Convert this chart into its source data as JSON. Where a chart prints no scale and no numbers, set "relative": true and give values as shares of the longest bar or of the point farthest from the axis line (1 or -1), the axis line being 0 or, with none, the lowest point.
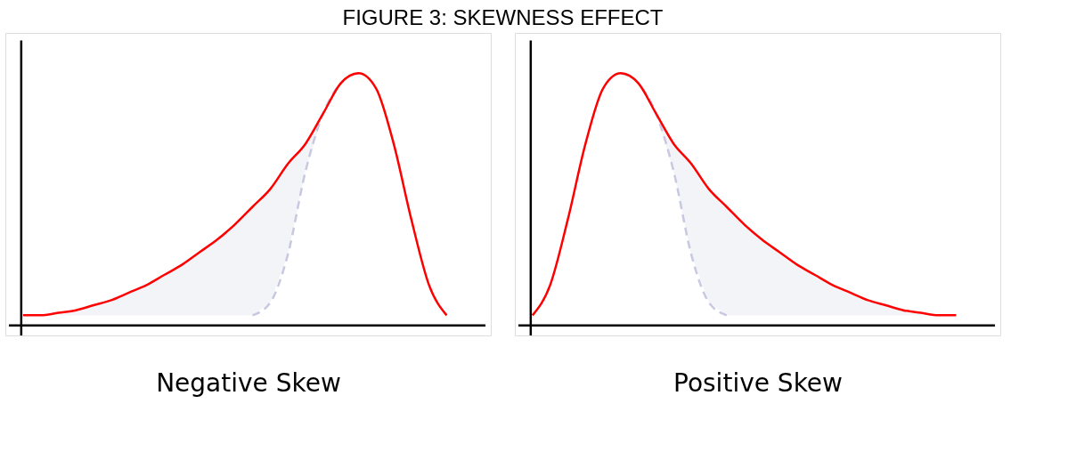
{
  "chart_data": [
    {
      "type": "line",
      "relative": true,
      "title": "FIGURE 3: SKEWNESS EFFECT",
      "xlabel": "Negative Skew",
      "grid": false,
      "categories": [
        null,
        null,
        null,
        null,
        null,
        null,
        null,
        null,
        null,
        null,
        null,
        null,
        null,
        null,
        null,
        null,
        null,
        null,
        null,
        null,
        null,
        null,
        null,
        null,
        null
      ],
      "series": [
        {
          "color": "#ff0000",
          "line_style": "solid",
          "values": [
            0.04,
            0.04,
            0.05,
            0.06,
            0.08,
            0.1,
            0.13,
            0.16,
            0.2,
            0.24,
            0.29,
            0.34,
            0.4,
            0.47,
            0.54,
            0.64,
            0.72,
            0.84,
            0.96,
            1.0,
            0.94,
            0.72,
            0.42,
            0.16,
            0.04
          ],
          "lower": [
            0.04,
            0.04,
            0.04,
            0.04,
            0.04,
            0.04,
            0.04,
            0.04,
            0.04,
            0.04,
            0.04,
            0.04,
            0.04,
            0.04,
            0.09,
            0.28,
            0.61,
            0.84,
            0.96,
            1.0,
            0.94,
            0.72,
            0.42,
            0.16,
            0.04
          ],
          "upper": [
            0.04,
            0.04,
            0.05,
            0.06,
            0.08,
            0.1,
            0.13,
            0.16,
            0.2,
            0.24,
            0.29,
            0.34,
            0.4,
            0.47,
            0.54,
            0.64,
            0.72,
            0.84,
            0.96,
            1.0,
            0.94,
            0.72,
            0.42,
            0.16,
            0.04
          ]
        },
        {
          "color": "#c8c8e0",
          "line_style": "dashed",
          "values": [
            null,
            null,
            null,
            null,
            null,
            null,
            null,
            null,
            null,
            null,
            null,
            null,
            null,
            0.04,
            0.09,
            0.28,
            0.61,
            0.84,
            0.96,
            1.0,
            null,
            null,
            null,
            null,
            null
          ]
        }
      ]
    },
    {
      "type": "line",
      "relative": true,
      "xlabel": "Positive Skew",
      "grid": false,
      "categories": [
        null,
        null,
        null,
        null,
        null,
        null,
        null,
        null,
        null,
        null,
        null,
        null,
        null,
        null,
        null,
        null,
        null,
        null,
        null,
        null,
        null,
        null,
        null,
        null,
        null
      ],
      "series": [
        {
          "color": "#ff0000",
          "line_style": "solid",
          "values": [
            0.04,
            0.16,
            0.42,
            0.72,
            0.94,
            1.0,
            0.96,
            0.84,
            0.72,
            0.64,
            0.54,
            0.47,
            0.4,
            0.34,
            0.29,
            0.24,
            0.2,
            0.16,
            0.13,
            0.1,
            0.08,
            0.06,
            0.05,
            0.04,
            0.04
          ],
          "lower": [
            0.04,
            0.16,
            0.42,
            0.72,
            0.94,
            1.0,
            0.96,
            0.84,
            0.61,
            0.28,
            0.09,
            0.04,
            0.04,
            0.04,
            0.04,
            0.04,
            0.04,
            0.04,
            0.04,
            0.04,
            0.04,
            0.04,
            0.04,
            0.04,
            0.04
          ],
          "upper": [
            0.04,
            0.16,
            0.42,
            0.72,
            0.94,
            1.0,
            0.96,
            0.84,
            0.72,
            0.64,
            0.54,
            0.47,
            0.4,
            0.34,
            0.29,
            0.24,
            0.2,
            0.16,
            0.13,
            0.1,
            0.08,
            0.06,
            0.05,
            0.04,
            0.04
          ]
        },
        {
          "color": "#c8c8e0",
          "line_style": "dashed",
          "values": [
            null,
            null,
            null,
            null,
            null,
            1.0,
            0.96,
            0.84,
            0.61,
            0.28,
            0.09,
            0.04,
            null,
            null,
            null,
            null,
            null,
            null,
            null,
            null,
            null,
            null,
            null,
            null,
            null
          ]
        }
      ]
    }
  ]
}
